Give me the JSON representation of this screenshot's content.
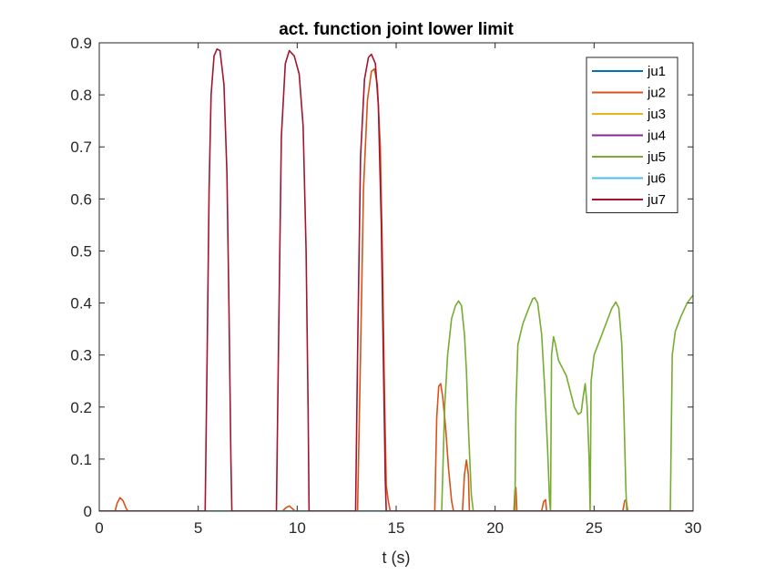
{
  "chart_data": {
    "type": "line",
    "title": "act. function joint lower limit",
    "xlabel": "t (s)",
    "ylabel": "",
    "xlim": [
      0,
      30
    ],
    "ylim": [
      0,
      0.9
    ],
    "xticks": [
      0,
      5,
      10,
      15,
      20,
      25,
      30
    ],
    "xtick_labels": [
      "0",
      "5",
      "10",
      "15",
      "20",
      "25",
      "30"
    ],
    "yticks": [
      0,
      0.1,
      0.2,
      0.3,
      0.4,
      0.5,
      0.6,
      0.7,
      0.8,
      0.9
    ],
    "ytick_labels": [
      "0",
      "0.1",
      "0.2",
      "0.3",
      "0.4",
      "0.5",
      "0.6",
      "0.7",
      "0.8",
      "0.9"
    ],
    "grid": false,
    "legend_position": "top-right",
    "series": [
      {
        "name": "ju1",
        "color": "#0072BD",
        "points": [
          [
            0,
            0
          ],
          [
            30,
            0
          ]
        ]
      },
      {
        "name": "ju2",
        "color": "#D95319",
        "points": [
          [
            0,
            0
          ],
          [
            0.8,
            0
          ],
          [
            0.9,
            0.015
          ],
          [
            1.05,
            0.026
          ],
          [
            1.2,
            0.02
          ],
          [
            1.35,
            0.006
          ],
          [
            1.45,
            0
          ],
          [
            9.25,
            0
          ],
          [
            9.45,
            0.007
          ],
          [
            9.6,
            0.01
          ],
          [
            9.75,
            0.005
          ],
          [
            9.9,
            0
          ],
          [
            13.05,
            0
          ],
          [
            13.2,
            0.3
          ],
          [
            13.35,
            0.62
          ],
          [
            13.55,
            0.79
          ],
          [
            13.75,
            0.845
          ],
          [
            13.9,
            0.85
          ],
          [
            14.05,
            0.82
          ],
          [
            14.2,
            0.7
          ],
          [
            14.3,
            0.5
          ],
          [
            14.4,
            0.25
          ],
          [
            14.5,
            0.05
          ],
          [
            14.6,
            0.02
          ],
          [
            14.7,
            0
          ],
          [
            16.95,
            0
          ],
          [
            17.05,
            0.18
          ],
          [
            17.15,
            0.24
          ],
          [
            17.25,
            0.245
          ],
          [
            17.35,
            0.22
          ],
          [
            17.5,
            0.16
          ],
          [
            17.65,
            0.08
          ],
          [
            17.8,
            0.02
          ],
          [
            17.9,
            0
          ],
          [
            18.35,
            0
          ],
          [
            18.45,
            0.07
          ],
          [
            18.55,
            0.098
          ],
          [
            18.65,
            0.07
          ],
          [
            18.7,
            0
          ],
          [
            20.95,
            0
          ],
          [
            21.0,
            0.04
          ],
          [
            21.05,
            0.045
          ],
          [
            21.1,
            0
          ],
          [
            22.35,
            0
          ],
          [
            22.45,
            0.018
          ],
          [
            22.55,
            0.022
          ],
          [
            22.6,
            0
          ],
          [
            26.45,
            0
          ],
          [
            26.55,
            0.02
          ],
          [
            26.62,
            0.022
          ],
          [
            26.7,
            0
          ],
          [
            30,
            0
          ]
        ]
      },
      {
        "name": "ju3",
        "color": "#EDB120",
        "points": [
          [
            0,
            0
          ],
          [
            30,
            0
          ]
        ]
      },
      {
        "name": "ju4",
        "color": "#7E2F8E",
        "points": [
          [
            0,
            0
          ],
          [
            30,
            0
          ]
        ]
      },
      {
        "name": "ju5",
        "color": "#77AC30",
        "points": [
          [
            0,
            0
          ],
          [
            17.3,
            0
          ],
          [
            17.45,
            0.2
          ],
          [
            17.6,
            0.3
          ],
          [
            17.8,
            0.37
          ],
          [
            18.0,
            0.395
          ],
          [
            18.15,
            0.404
          ],
          [
            18.3,
            0.395
          ],
          [
            18.45,
            0.34
          ],
          [
            18.55,
            0.27
          ],
          [
            18.65,
            0.16
          ],
          [
            18.8,
            0.03
          ],
          [
            18.9,
            0
          ],
          [
            21.0,
            0
          ],
          [
            21.05,
            0.2
          ],
          [
            21.15,
            0.32
          ],
          [
            21.4,
            0.36
          ],
          [
            21.7,
            0.39
          ],
          [
            21.9,
            0.408
          ],
          [
            22.0,
            0.41
          ],
          [
            22.15,
            0.4
          ],
          [
            22.35,
            0.34
          ],
          [
            22.5,
            0.24
          ],
          [
            22.65,
            0.12
          ],
          [
            22.75,
            0.02
          ],
          [
            22.8,
            0
          ],
          [
            22.85,
            0.3
          ],
          [
            22.95,
            0.335
          ],
          [
            23.05,
            0.32
          ],
          [
            23.2,
            0.29
          ],
          [
            23.4,
            0.275
          ],
          [
            23.6,
            0.26
          ],
          [
            23.8,
            0.23
          ],
          [
            24.0,
            0.2
          ],
          [
            24.2,
            0.186
          ],
          [
            24.35,
            0.19
          ],
          [
            24.45,
            0.22
          ],
          [
            24.55,
            0.245
          ],
          [
            24.65,
            0.2
          ],
          [
            24.75,
            0.1
          ],
          [
            24.8,
            0
          ],
          [
            24.85,
            0.25
          ],
          [
            25.0,
            0.3
          ],
          [
            25.3,
            0.33
          ],
          [
            25.6,
            0.36
          ],
          [
            25.9,
            0.39
          ],
          [
            26.1,
            0.402
          ],
          [
            26.25,
            0.39
          ],
          [
            26.4,
            0.32
          ],
          [
            26.5,
            0.2
          ],
          [
            26.6,
            0.05
          ],
          [
            26.65,
            0
          ],
          [
            28.85,
            0
          ],
          [
            28.95,
            0.3
          ],
          [
            29.1,
            0.345
          ],
          [
            29.4,
            0.375
          ],
          [
            29.7,
            0.4
          ],
          [
            30.0,
            0.415
          ]
        ]
      },
      {
        "name": "ju6",
        "color": "#4DBEEE",
        "points": [
          [
            0,
            0
          ],
          [
            30,
            0
          ]
        ]
      },
      {
        "name": "ju7",
        "color": "#A2142F",
        "points": [
          [
            0,
            0
          ],
          [
            5.35,
            0
          ],
          [
            5.45,
            0.3
          ],
          [
            5.55,
            0.62
          ],
          [
            5.65,
            0.8
          ],
          [
            5.8,
            0.875
          ],
          [
            5.95,
            0.888
          ],
          [
            6.1,
            0.885
          ],
          [
            6.3,
            0.82
          ],
          [
            6.45,
            0.65
          ],
          [
            6.55,
            0.4
          ],
          [
            6.65,
            0.1
          ],
          [
            6.7,
            0
          ],
          [
            8.95,
            0
          ],
          [
            9.05,
            0.3
          ],
          [
            9.2,
            0.72
          ],
          [
            9.4,
            0.86
          ],
          [
            9.6,
            0.885
          ],
          [
            9.85,
            0.875
          ],
          [
            10.1,
            0.84
          ],
          [
            10.3,
            0.74
          ],
          [
            10.45,
            0.5
          ],
          [
            10.55,
            0.2
          ],
          [
            10.6,
            0
          ],
          [
            12.95,
            0
          ],
          [
            13.05,
            0.3
          ],
          [
            13.2,
            0.68
          ],
          [
            13.4,
            0.83
          ],
          [
            13.6,
            0.872
          ],
          [
            13.75,
            0.878
          ],
          [
            13.95,
            0.86
          ],
          [
            14.1,
            0.78
          ],
          [
            14.25,
            0.55
          ],
          [
            14.35,
            0.3
          ],
          [
            14.45,
            0.06
          ],
          [
            14.5,
            0
          ],
          [
            30,
            0
          ]
        ]
      }
    ]
  }
}
